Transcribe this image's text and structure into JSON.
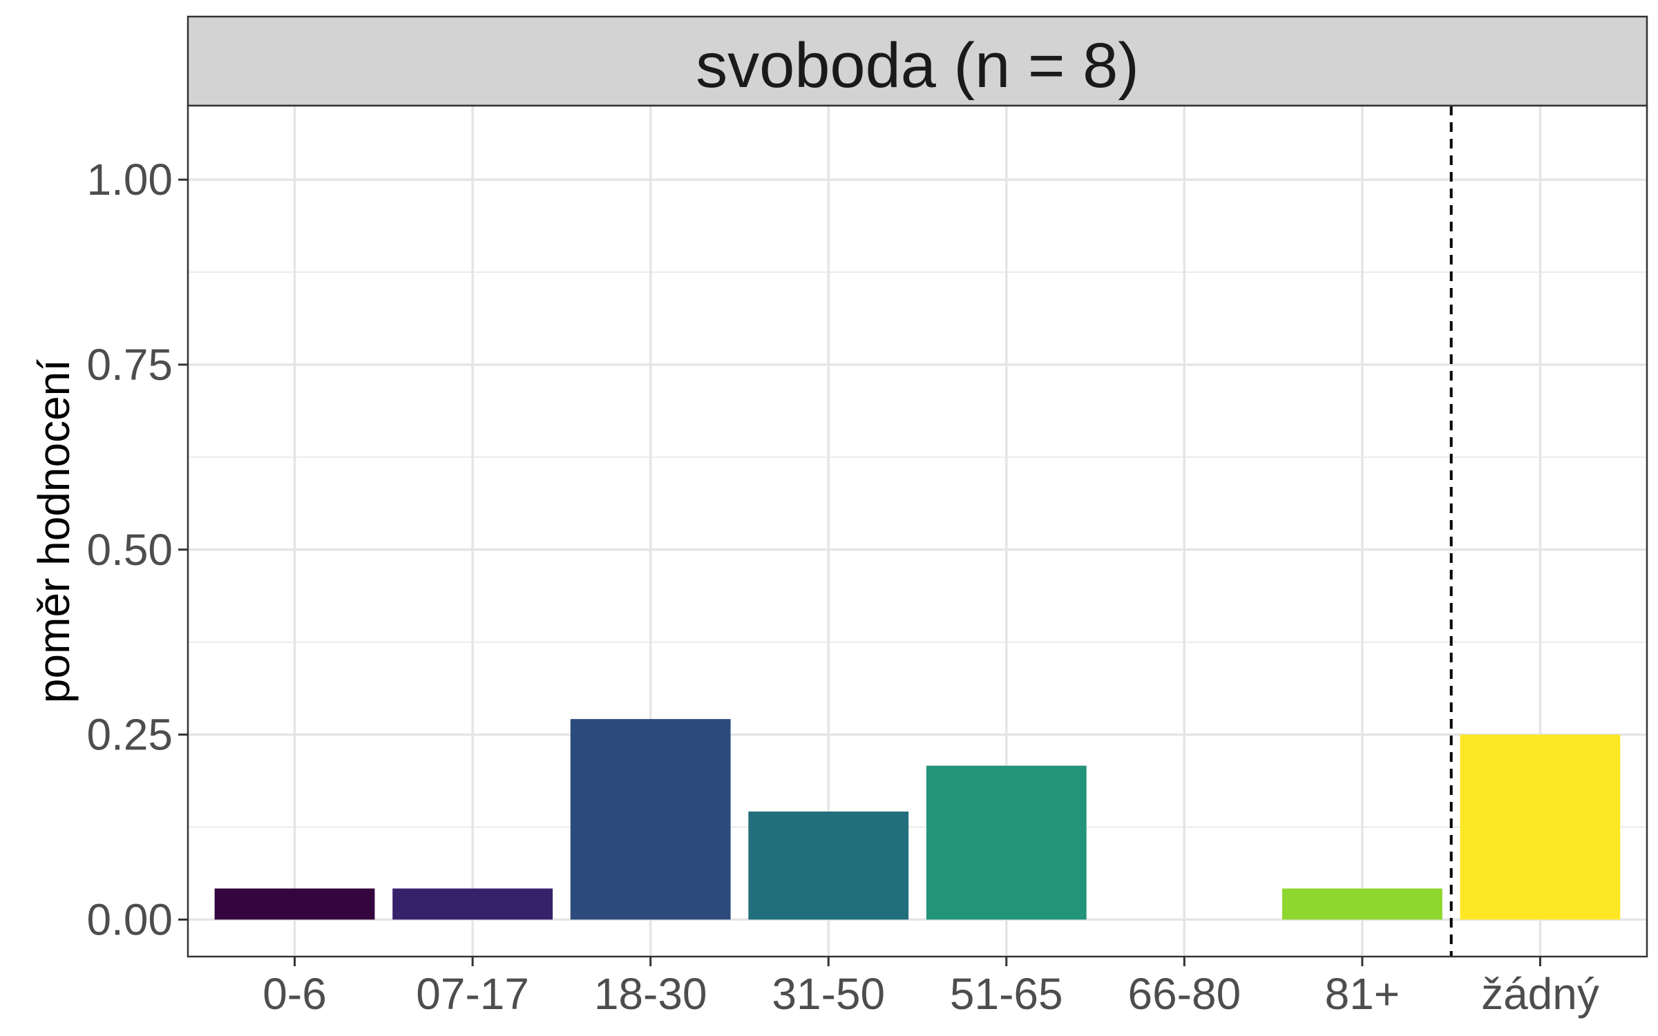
{
  "chart_data": {
    "type": "bar",
    "title": "svoboda (n = 8)",
    "xlabel": "",
    "ylabel": "poměr hodnocení",
    "categories": [
      "0-6",
      "07-17",
      "18-30",
      "31-50",
      "51-65",
      "66-80",
      "81+",
      "žádný"
    ],
    "values": [
      0.042,
      0.042,
      0.271,
      0.146,
      0.208,
      0.0,
      0.042,
      0.25
    ],
    "colors": [
      "#35053f",
      "#36226a",
      "#2c4a7b",
      "#216e7c",
      "#22947a",
      "#43b96a",
      "#8fd62e",
      "#fde725"
    ],
    "ylim": [
      -0.05,
      1.1
    ],
    "yticks": [
      0.0,
      0.25,
      0.5,
      0.75,
      1.0
    ],
    "ytick_labels": [
      "0.00",
      "0.25",
      "0.50",
      "0.75",
      "1.00"
    ],
    "reference_line": {
      "after_category": "81+",
      "style": "dashed",
      "color": "#000000"
    },
    "grid": true,
    "legend": "none"
  }
}
